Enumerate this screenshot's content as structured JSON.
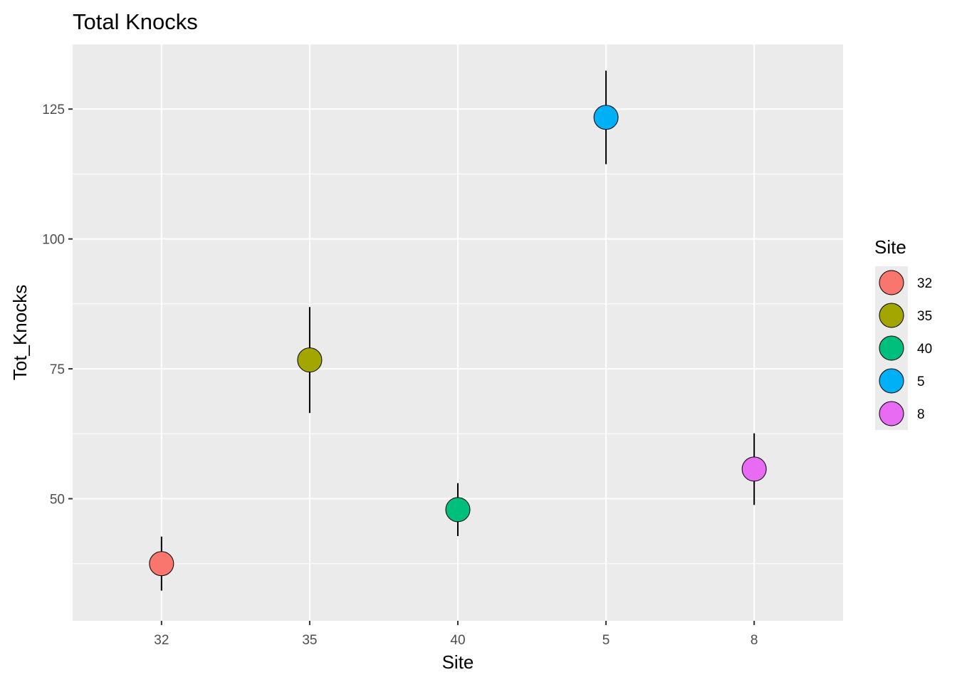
{
  "chart_data": {
    "type": "scatter",
    "title": "Total Knocks",
    "xlabel": "Site",
    "ylabel": "Tot_Knocks",
    "categories": [
      "32",
      "35",
      "40",
      "5",
      "8"
    ],
    "y_ticks": [
      50,
      75,
      100,
      125
    ],
    "ylim": [
      26.5,
      137.5
    ],
    "grid": true,
    "legend": {
      "title": "Site",
      "position": "right",
      "entries": [
        "32",
        "35",
        "40",
        "5",
        "8"
      ]
    },
    "points": [
      {
        "x": "32",
        "y": 37.5,
        "ymin": 32.3,
        "ymax": 42.7,
        "color": "#F8766D"
      },
      {
        "x": "35",
        "y": 76.7,
        "ymin": 66.5,
        "ymax": 86.9,
        "color": "#A3A500"
      },
      {
        "x": "40",
        "y": 47.9,
        "ymin": 42.8,
        "ymax": 53.0,
        "color": "#00BF7D"
      },
      {
        "x": "5",
        "y": 123.4,
        "ymin": 114.4,
        "ymax": 132.4,
        "color": "#00B0F6"
      },
      {
        "x": "8",
        "y": 55.7,
        "ymin": 48.8,
        "ymax": 62.6,
        "color": "#E76BF3"
      }
    ],
    "panel_color": "#EBEBEB",
    "grid_color": "#FFFFFF"
  }
}
